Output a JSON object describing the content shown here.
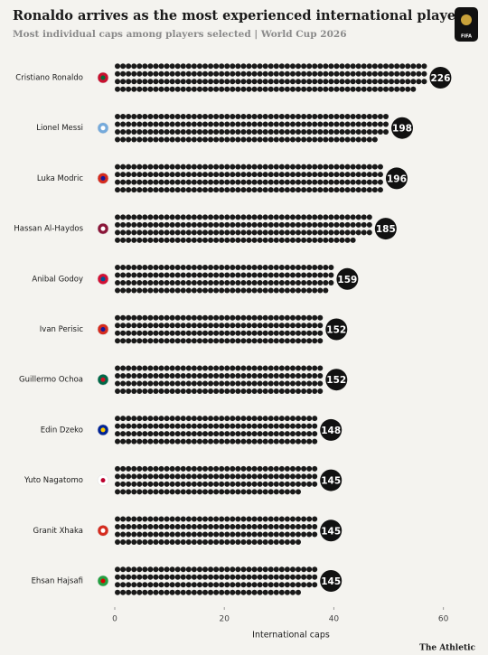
{
  "chart_data": {
    "type": "dot",
    "title": "Ronaldo arrives as the most experienced international player",
    "subtitle": "Most individual caps among players selected | World Cup 2026",
    "logo": "FIFA",
    "source": "The Athletic",
    "categories": [
      "Cristiano Ronaldo",
      "Lionel Messi",
      "Luka Modric",
      "Hassan Al-Haydos",
      "Anibal Godoy",
      "Ivan Perisic",
      "Guillermo Ochoa",
      "Edin Dzeko",
      "Yuto Nagatomo",
      "Granit Xhaka",
      "Ehsan Hajsafi"
    ],
    "values": [
      226,
      198,
      196,
      185,
      159,
      152,
      152,
      148,
      145,
      145,
      145
    ],
    "color": "#1a1a1a",
    "xlabel": "International caps",
    "xlim": [
      0,
      66
    ],
    "xticks": [
      0,
      20,
      40,
      60
    ]
  }
}
